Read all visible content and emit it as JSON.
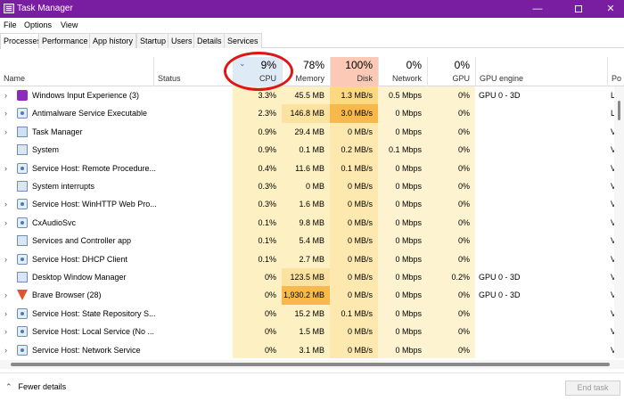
{
  "window": {
    "title": "Task Manager",
    "minimize": "—",
    "close": "✕"
  },
  "menu": [
    "File",
    "Options",
    "View"
  ],
  "tabs": [
    "Processes",
    "Performance",
    "App history",
    "Startup",
    "Users",
    "Details",
    "Services"
  ],
  "header": {
    "name": "Name",
    "status": "Status",
    "cpu_pct": "9%",
    "cpu": "CPU",
    "memory_pct": "78%",
    "memory": "Memory",
    "disk_pct": "100%",
    "disk": "Disk",
    "network_pct": "0%",
    "network": "Network",
    "gpu_pct": "0%",
    "gpu": "GPU",
    "gpu_engine": "GPU engine",
    "power": "Po"
  },
  "processes": [
    {
      "name": "Windows Input Experience (3)",
      "expand": true,
      "icon": "app-icon",
      "cpu": "3.3%",
      "memory": "45.5 MB",
      "disk": "1.3 MB/s",
      "network": "0.5 Mbps",
      "gpu": "0%",
      "gpu_engine": "GPU 0 - 3D",
      "power": "L"
    },
    {
      "name": "Antimalware Service Executable",
      "expand": true,
      "icon": "service-icon",
      "cpu": "2.3%",
      "memory": "146.8 MB",
      "disk": "3.0 MB/s",
      "network": "0 Mbps",
      "gpu": "0%",
      "gpu_engine": "",
      "power": "L"
    },
    {
      "name": "Task Manager",
      "expand": true,
      "icon": "task-manager-icon",
      "cpu": "0.9%",
      "memory": "29.4 MB",
      "disk": "0 MB/s",
      "network": "0 Mbps",
      "gpu": "0%",
      "gpu_engine": "",
      "power": "V"
    },
    {
      "name": "System",
      "expand": false,
      "icon": "system-icon",
      "cpu": "0.9%",
      "memory": "0.1 MB",
      "disk": "0.2 MB/s",
      "network": "0.1 Mbps",
      "gpu": "0%",
      "gpu_engine": "",
      "power": "V"
    },
    {
      "name": "Service Host: Remote Procedure...",
      "expand": true,
      "icon": "service-icon",
      "cpu": "0.4%",
      "memory": "11.6 MB",
      "disk": "0.1 MB/s",
      "network": "0 Mbps",
      "gpu": "0%",
      "gpu_engine": "",
      "power": "V"
    },
    {
      "name": "System interrupts",
      "expand": false,
      "icon": "system-icon",
      "cpu": "0.3%",
      "memory": "0 MB",
      "disk": "0 MB/s",
      "network": "0 Mbps",
      "gpu": "0%",
      "gpu_engine": "",
      "power": "V"
    },
    {
      "name": "Service Host: WinHTTP Web Pro...",
      "expand": true,
      "icon": "service-icon",
      "cpu": "0.3%",
      "memory": "1.6 MB",
      "disk": "0 MB/s",
      "network": "0 Mbps",
      "gpu": "0%",
      "gpu_engine": "",
      "power": "V"
    },
    {
      "name": "CxAudioSvc",
      "expand": true,
      "icon": "service-icon",
      "cpu": "0.1%",
      "memory": "9.8 MB",
      "disk": "0 MB/s",
      "network": "0 Mbps",
      "gpu": "0%",
      "gpu_engine": "",
      "power": "V"
    },
    {
      "name": "Services and Controller app",
      "expand": false,
      "icon": "system-icon",
      "cpu": "0.1%",
      "memory": "5.4 MB",
      "disk": "0 MB/s",
      "network": "0 Mbps",
      "gpu": "0%",
      "gpu_engine": "",
      "power": "V"
    },
    {
      "name": "Service Host: DHCP Client",
      "expand": true,
      "icon": "service-icon",
      "cpu": "0.1%",
      "memory": "2.7 MB",
      "disk": "0 MB/s",
      "network": "0 Mbps",
      "gpu": "0%",
      "gpu_engine": "",
      "power": "V"
    },
    {
      "name": "Desktop Window Manager",
      "expand": false,
      "icon": "system-icon",
      "cpu": "0%",
      "memory": "123.5 MB",
      "disk": "0 MB/s",
      "network": "0 Mbps",
      "gpu": "0.2%",
      "gpu_engine": "GPU 0 - 3D",
      "power": "V"
    },
    {
      "name": "Brave Browser (28)",
      "expand": true,
      "icon": "brave-icon",
      "cpu": "0%",
      "memory": "1,930.2 MB",
      "disk": "0 MB/s",
      "network": "0 Mbps",
      "gpu": "0%",
      "gpu_engine": "GPU 0 - 3D",
      "power": "V"
    },
    {
      "name": "Service Host: State Repository S...",
      "expand": true,
      "icon": "service-icon",
      "cpu": "0%",
      "memory": "15.2 MB",
      "disk": "0.1 MB/s",
      "network": "0 Mbps",
      "gpu": "0%",
      "gpu_engine": "",
      "power": "V"
    },
    {
      "name": "Service Host: Local Service (No ...",
      "expand": true,
      "icon": "service-icon",
      "cpu": "0%",
      "memory": "1.5 MB",
      "disk": "0 MB/s",
      "network": "0 Mbps",
      "gpu": "0%",
      "gpu_engine": "",
      "power": "V"
    },
    {
      "name": "Service Host: Network Service",
      "expand": true,
      "icon": "service-icon",
      "cpu": "0%",
      "memory": "3.1 MB",
      "disk": "0 MB/s",
      "network": "0 Mbps",
      "gpu": "0%",
      "gpu_engine": "",
      "power": "V"
    }
  ],
  "footer": {
    "fewer_details": "Fewer details",
    "end_task": "End task"
  },
  "colors": {
    "titlebar": "#7a1ea1",
    "annotation_circle": "#e01515",
    "disk_header": "#fbc9b5"
  }
}
